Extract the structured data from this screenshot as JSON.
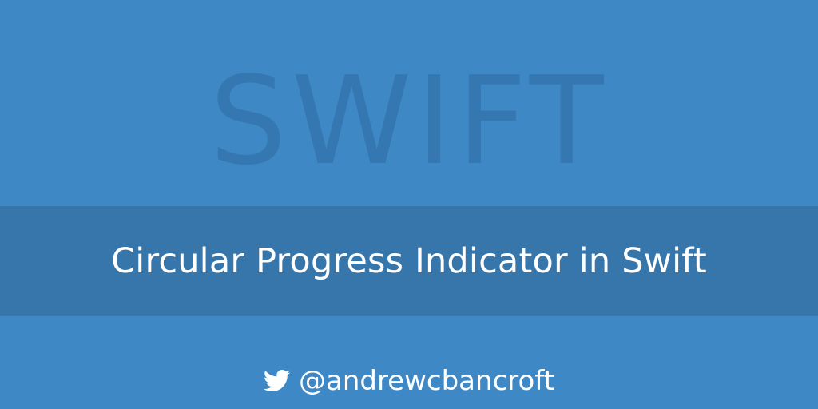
{
  "watermark": {
    "text": "SWIFT"
  },
  "banner": {
    "title": "Circular Progress Indicator in Swift"
  },
  "footer": {
    "icon": "twitter-icon",
    "handle": "@andrewcbancroft"
  },
  "colors": {
    "background": "#3e88c5",
    "banner": "#3676ab",
    "watermark": "#3577b0",
    "text": "#ffffff"
  }
}
